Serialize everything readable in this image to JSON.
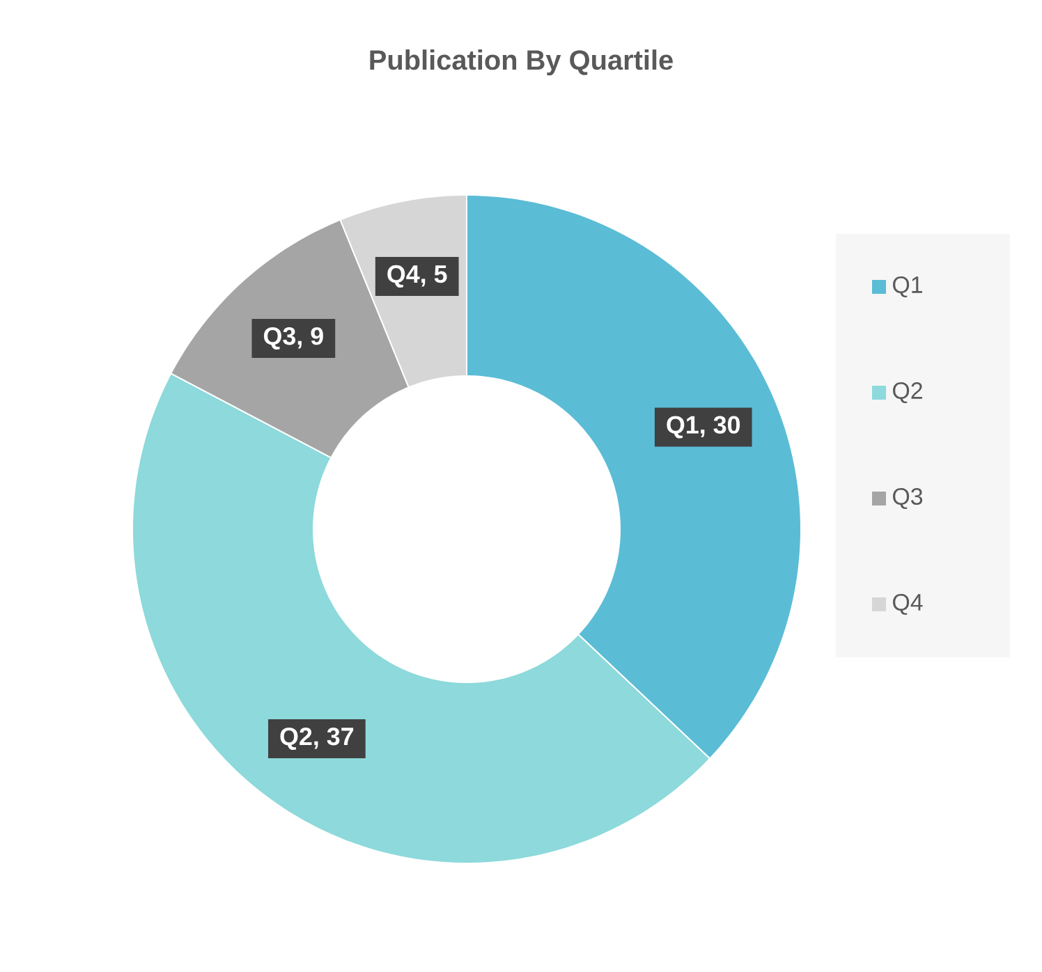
{
  "chart_data": {
    "type": "donut",
    "title": "Publication By Quartile",
    "categories": [
      "Q1",
      "Q2",
      "Q3",
      "Q4"
    ],
    "values": [
      30,
      37,
      9,
      5
    ],
    "colors": [
      "#5bbcd6",
      "#8dd9db",
      "#a5a5a5",
      "#d6d6d6"
    ],
    "value_labels": [
      "Q1, 30",
      "Q2, 37",
      "Q3, 9",
      "Q4, 5"
    ],
    "legend": "right"
  }
}
